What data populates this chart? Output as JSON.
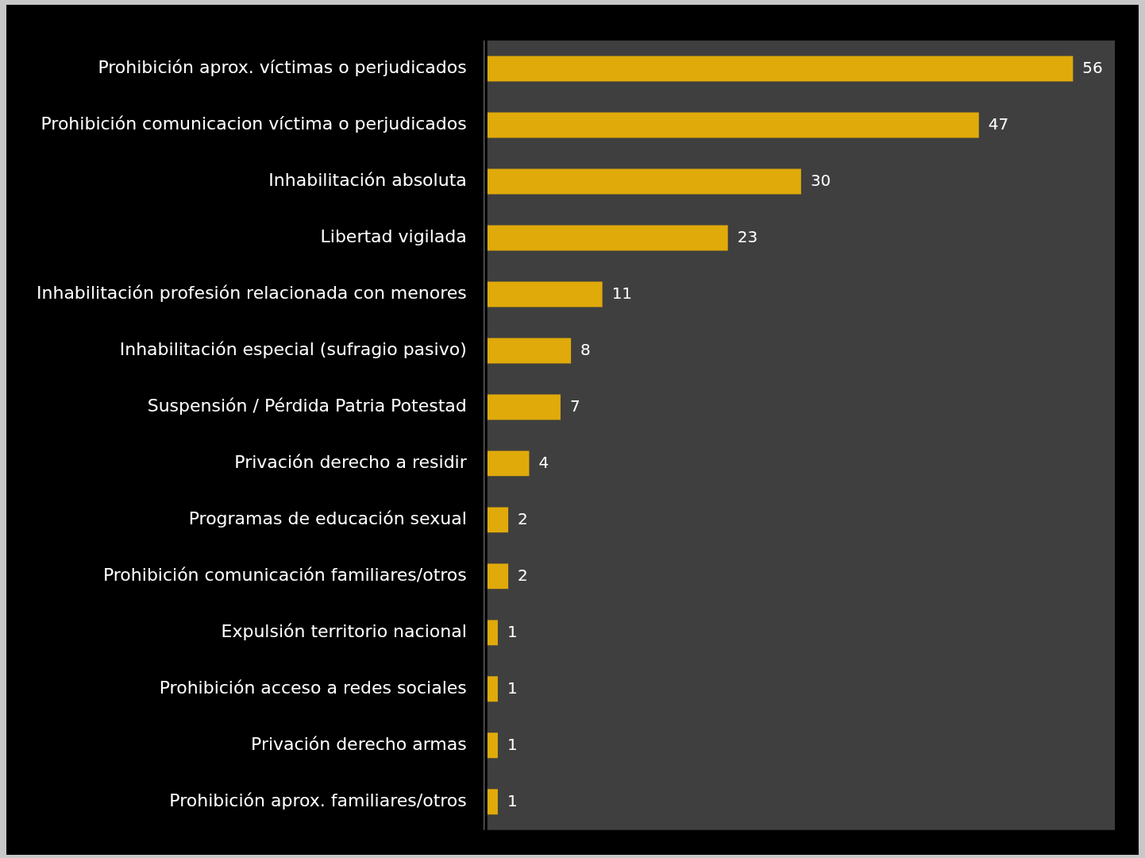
{
  "chart_data": {
    "type": "bar",
    "orientation": "horizontal",
    "categories": [
      "Prohibición aprox. víctimas o perjudicados",
      "Prohibición comunicacion víctima o perjudicados",
      "Inhabilitación absoluta",
      "Libertad vigilada",
      "Inhabilitación profesión relacionada con menores",
      "Inhabilitación especial (sufragio pasivo)",
      "Suspensión / Pérdida Patria Potestad",
      "Privación derecho a residir",
      "Programas de educación sexual",
      "Prohibición comunicación familiares/otros",
      "Expulsión territorio nacional",
      "Prohibición acceso a redes sociales",
      "Privación derecho armas",
      "Prohibición aprox. familiares/otros"
    ],
    "values": [
      56,
      47,
      30,
      23,
      11,
      8,
      7,
      4,
      2,
      2,
      1,
      1,
      1,
      1
    ],
    "color": "#e0aa0a",
    "data_labels": true
  }
}
